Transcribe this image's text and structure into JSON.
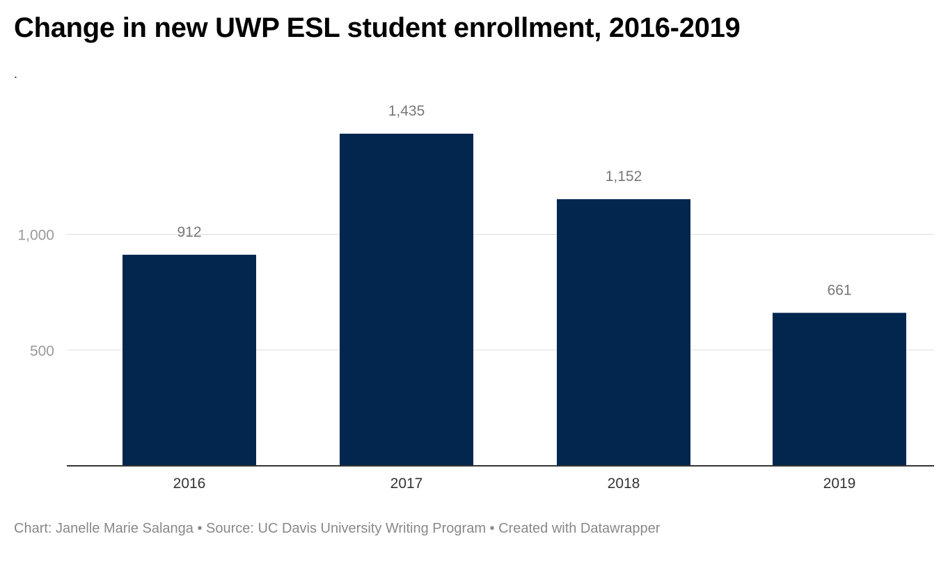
{
  "chart_data": {
    "type": "bar",
    "title": "Change in new UWP ESL student enrollment, 2016-2019",
    "subtitle": ".",
    "categories": [
      "2016",
      "2017",
      "2018",
      "2019"
    ],
    "values": [
      912,
      1435,
      1152,
      661
    ],
    "value_labels": [
      "912",
      "1,435",
      "1,152",
      "661"
    ],
    "y_ticks": [
      500,
      1000
    ],
    "y_tick_labels": [
      "500",
      "1,000"
    ],
    "ylim": [
      0,
      1435
    ],
    "xlabel": "",
    "ylabel": "",
    "grid": true,
    "bar_color": "#03264f"
  },
  "footer": {
    "text": "Chart: Janelle Marie Salanga • Source: UC Davis University Writing Program • Created with Datawrapper"
  }
}
